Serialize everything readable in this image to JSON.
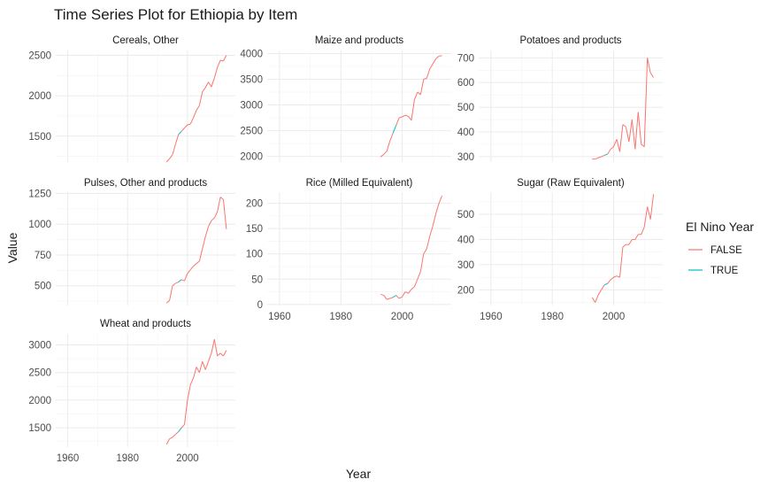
{
  "chart_data": {
    "type": "line",
    "title": "Time Series Plot for Ethiopia by Item",
    "xlabel": "Year",
    "ylabel": "Value",
    "xlim": [
      1956,
      2016
    ],
    "x_ticks": [
      1960,
      1980,
      2000
    ],
    "legend": {
      "title": "El Nino Year",
      "placement": "right",
      "entries": [
        {
          "label": "FALSE",
          "color": "#F8766D"
        },
        {
          "label": "TRUE",
          "color": "#00BFC4"
        }
      ]
    },
    "el_nino_years": [
      1997,
      1998
    ],
    "panels": [
      {
        "name": "Cereals, Other",
        "ylim": [
          1180,
          2560
        ],
        "y_ticks": [
          1500,
          2000,
          2500
        ],
        "x": [
          1993,
          1994,
          1995,
          1996,
          1997,
          1998,
          1999,
          2000,
          2001,
          2002,
          2003,
          2004,
          2005,
          2006,
          2007,
          2008,
          2009,
          2010,
          2011,
          2012,
          2013
        ],
        "y": [
          1180,
          1220,
          1270,
          1400,
          1520,
          1560,
          1600,
          1640,
          1650,
          1730,
          1820,
          1880,
          2050,
          2100,
          2170,
          2110,
          2220,
          2350,
          2440,
          2430,
          2500
        ]
      },
      {
        "name": "Maize and products",
        "ylim": [
          1890,
          4060
        ],
        "y_ticks": [
          2000,
          2500,
          3000,
          3500,
          4000
        ],
        "x": [
          1993,
          1994,
          1995,
          1996,
          1997,
          1998,
          1999,
          2000,
          2001,
          2002,
          2003,
          2004,
          2005,
          2006,
          2007,
          2008,
          2009,
          2010,
          2011,
          2012,
          2013
        ],
        "y": [
          1990,
          2040,
          2100,
          2300,
          2450,
          2600,
          2750,
          2770,
          2800,
          2780,
          2700,
          3100,
          3250,
          3200,
          3500,
          3520,
          3700,
          3800,
          3900,
          3950,
          3960
        ]
      },
      {
        "name": "Potatoes and products",
        "ylim": [
          278,
          730
        ],
        "y_ticks": [
          300,
          400,
          500,
          600,
          700
        ],
        "x": [
          1993,
          1994,
          1995,
          1996,
          1997,
          1998,
          1999,
          2000,
          2001,
          2002,
          2003,
          2004,
          2005,
          2006,
          2007,
          2008,
          2009,
          2010,
          2011,
          2012,
          2013
        ],
        "y": [
          290,
          290,
          295,
          300,
          305,
          310,
          330,
          340,
          370,
          320,
          430,
          420,
          360,
          450,
          330,
          480,
          350,
          340,
          700,
          640,
          620
        ]
      },
      {
        "name": "Pulses, Other and products",
        "ylim": [
          340,
          1260
        ],
        "y_ticks": [
          500,
          750,
          1000,
          1250
        ],
        "x": [
          1993,
          1994,
          1995,
          1996,
          1997,
          1998,
          1999,
          2000,
          2001,
          2002,
          2003,
          2004,
          2005,
          2006,
          2007,
          2008,
          2009,
          2010,
          2011,
          2012,
          2013
        ],
        "y": [
          360,
          380,
          500,
          520,
          530,
          550,
          540,
          600,
          630,
          660,
          680,
          700,
          800,
          900,
          980,
          1030,
          1050,
          1100,
          1220,
          1200,
          960
        ]
      },
      {
        "name": "Rice (Milled Equivalent)",
        "ylim": [
          -2,
          222
        ],
        "y_ticks": [
          0,
          50,
          100,
          150,
          200
        ],
        "x": [
          1993,
          1994,
          1995,
          1996,
          1997,
          1998,
          1999,
          2000,
          2001,
          2002,
          2003,
          2004,
          2005,
          2006,
          2007,
          2008,
          2009,
          2010,
          2011,
          2012,
          2013
        ],
        "y": [
          20,
          18,
          10,
          12,
          14,
          18,
          12,
          15,
          25,
          22,
          30,
          35,
          50,
          65,
          100,
          110,
          135,
          155,
          180,
          200,
          215
        ]
      },
      {
        "name": "Sugar (Raw Equivalent)",
        "ylim": [
          138,
          588
        ],
        "y_ticks": [
          200,
          300,
          400,
          500
        ],
        "x": [
          1993,
          1994,
          1995,
          1996,
          1997,
          1998,
          1999,
          2000,
          2001,
          2002,
          2003,
          2004,
          2005,
          2006,
          2007,
          2008,
          2009,
          2010,
          2011,
          2012,
          2013
        ],
        "y": [
          170,
          150,
          180,
          200,
          220,
          225,
          240,
          250,
          255,
          250,
          370,
          380,
          380,
          400,
          400,
          420,
          420,
          450,
          530,
          480,
          580
        ]
      },
      {
        "name": "Wheat and products",
        "ylim": [
          1150,
          3200
        ],
        "y_ticks": [
          1500,
          2000,
          2500,
          3000
        ],
        "x": [
          1993,
          1994,
          1995,
          1996,
          1997,
          1998,
          1999,
          2000,
          2001,
          2002,
          2003,
          2004,
          2005,
          2006,
          2007,
          2008,
          2009,
          2010,
          2011,
          2012,
          2013
        ],
        "y": [
          1200,
          1300,
          1330,
          1380,
          1430,
          1500,
          1560,
          2000,
          2280,
          2400,
          2600,
          2500,
          2700,
          2550,
          2700,
          2850,
          3100,
          2800,
          2850,
          2800,
          2900
        ]
      }
    ]
  }
}
